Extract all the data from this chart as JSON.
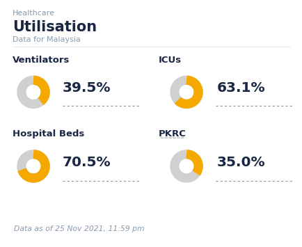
{
  "title_category": "Healthcare",
  "title_main": "Utilisation",
  "title_sub": "Data for Malaysia",
  "footer": "Data as of 25 Nov 2021, 11:59 pm",
  "metrics": [
    {
      "label": "Ventilators",
      "value": 39.5,
      "text": "39.5%",
      "row": 0,
      "col": 0
    },
    {
      "label": "ICUs",
      "value": 63.1,
      "text": "63.1%",
      "row": 0,
      "col": 1
    },
    {
      "label": "Hospital Beds",
      "value": 70.5,
      "text": "70.5%",
      "row": 1,
      "col": 0
    },
    {
      "label": "PKRC",
      "value": 35.0,
      "text": "35.0%",
      "row": 1,
      "col": 1
    }
  ],
  "donut_color": "#F5A800",
  "donut_bg": "#D0D0D0",
  "bg_color": "#FFFFFF",
  "footer_bg": "#F2F2F2",
  "text_dark": "#1a2744",
  "text_gray": "#8A9BAD",
  "label_color": "#1a2744",
  "value_color": "#1a2744",
  "pkrc_underline_color": "#555555"
}
